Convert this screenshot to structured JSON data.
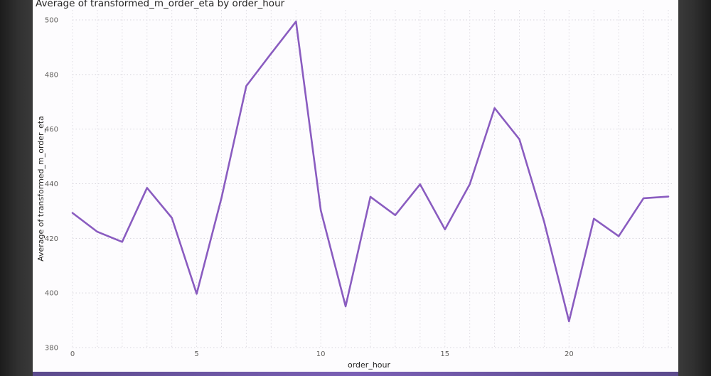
{
  "chart_data": {
    "type": "line",
    "title": "Average of transformed_m_order_eta by order_hour",
    "xlabel": "order_hour",
    "ylabel": "Average of transformed_m_order_eta",
    "xlim": [
      0,
      24
    ],
    "ylim": [
      380,
      500
    ],
    "x_ticks": [
      0,
      5,
      10,
      15,
      20
    ],
    "y_ticks": [
      380,
      400,
      420,
      440,
      460,
      480,
      500
    ],
    "grid": true,
    "series": [
      {
        "color": "#8a5cc0",
        "x": [
          0,
          1,
          2,
          3,
          4,
          5,
          6,
          7,
          8,
          9,
          10,
          11,
          12,
          13,
          14,
          15,
          16,
          17,
          18,
          19,
          20,
          21,
          22,
          23,
          24
        ],
        "y": [
          429.3,
          422.4,
          418.7,
          438.5,
          427.5,
          399.7,
          434.8,
          475.8,
          487.7,
          499.4,
          430.2,
          395.1,
          435.2,
          428.5,
          439.8,
          423.3,
          439.8,
          467.7,
          456.3,
          426.0,
          389.6,
          427.2,
          420.8,
          434.7,
          435.3
        ]
      }
    ]
  }
}
